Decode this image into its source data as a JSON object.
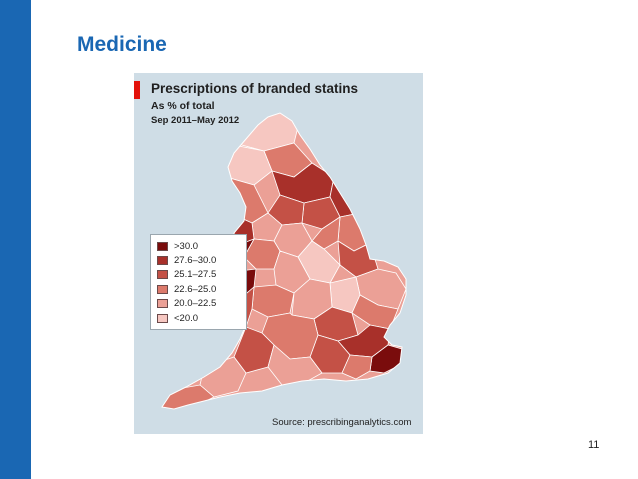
{
  "slide": {
    "title": "Medicine",
    "page_number": "11"
  },
  "figure": {
    "title": "Prescriptions of branded statins",
    "subtitle": "As % of total",
    "period": "Sep 2011–May 2012",
    "source": "Source: prescribinganalytics.com",
    "accent_color": "#e3120b",
    "background_color": "#cfdde6"
  },
  "legend": [
    {
      "label": ">30.0",
      "color": "#7a0c0c"
    },
    {
      "label": "27.6–30.0",
      "color": "#a8302a"
    },
    {
      "label": "25.1–27.5",
      "color": "#c45146"
    },
    {
      "label": "22.6–25.0",
      "color": "#dc7a6c"
    },
    {
      "label": "20.0–22.5",
      "color": "#eba096"
    },
    {
      "label": "<20.0",
      "color": "#f6c7c1"
    }
  ],
  "colors": {
    "side_bar": "#1a67b3",
    "title": "#1a67b3",
    "region_border": "#ffffff"
  }
}
